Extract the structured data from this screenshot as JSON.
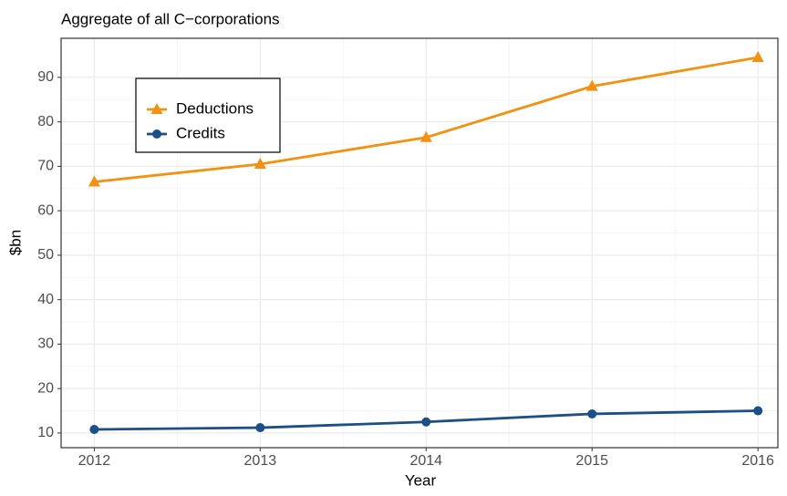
{
  "chart_data": {
    "type": "line",
    "title": "Aggregate of all C−corporations",
    "x_label": "Year",
    "y_label": "$bn",
    "x": [
      2012,
      2013,
      2014,
      2015,
      2016
    ],
    "series": [
      {
        "name": "Deductions",
        "color": "#f39110",
        "marker": "triangle",
        "values": [
          66.5,
          70.5,
          76.5,
          88,
          94.5
        ]
      },
      {
        "name": "Credits",
        "color": "#1b4f86",
        "marker": "circle",
        "values": [
          10.8,
          11.2,
          12.5,
          14.3,
          15
        ]
      }
    ],
    "xlim": [
      2011.8,
      2016.12
    ],
    "xticks": [
      2012,
      2013,
      2014,
      2015,
      2016
    ],
    "ylim": [
      6.7,
      98.8
    ],
    "yticks": [
      10,
      20,
      30,
      40,
      50,
      60,
      70,
      80,
      90
    ],
    "grid": true,
    "legend_position": "top-left"
  }
}
